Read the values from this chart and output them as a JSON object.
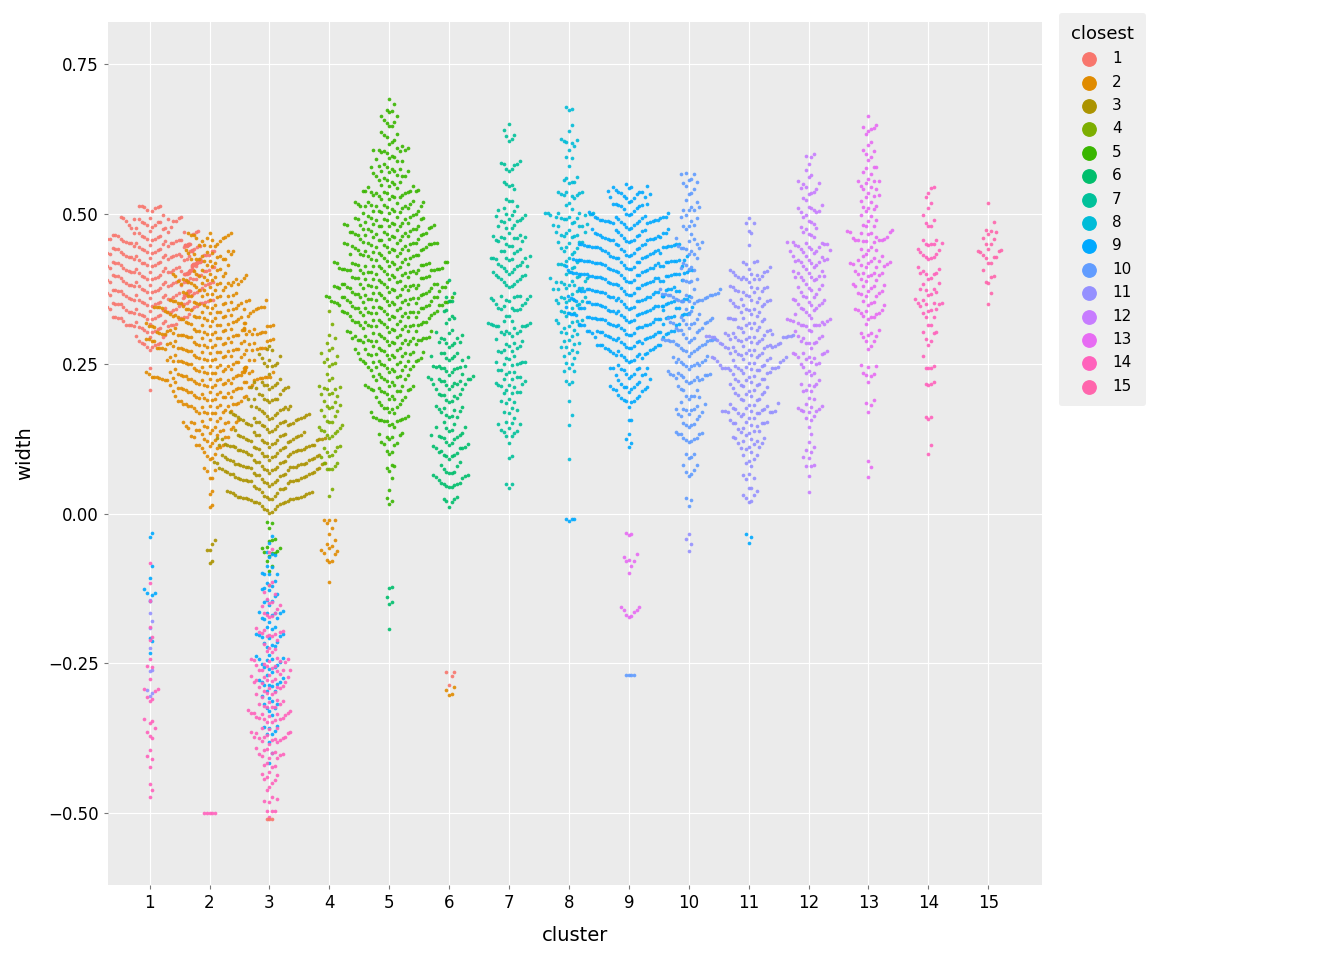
{
  "actual_colors": {
    "1": "#F8766D",
    "2": "#E08B00",
    "3": "#AB9300",
    "4": "#7CAE00",
    "5": "#39B600",
    "6": "#00BE6C",
    "7": "#00C19A",
    "8": "#00BCD8",
    "9": "#00A9FF",
    "10": "#619CFF",
    "11": "#9590FF",
    "12": "#C77CFF",
    "13": "#E76BF3",
    "14": "#FF62BC",
    "15": "#FF65AC"
  },
  "xlabel": "cluster",
  "ylabel": "width",
  "ylim": [
    -0.62,
    0.82
  ],
  "yticks": [
    -0.5,
    -0.25,
    0.0,
    0.25,
    0.5,
    0.75
  ],
  "xticks": [
    1,
    2,
    3,
    4,
    5,
    6,
    7,
    8,
    9,
    10,
    11,
    12,
    13,
    14,
    15
  ],
  "background_color": "#EBEBEB",
  "grid_color": "#FFFFFF",
  "legend_title": "closest",
  "seed": 42
}
